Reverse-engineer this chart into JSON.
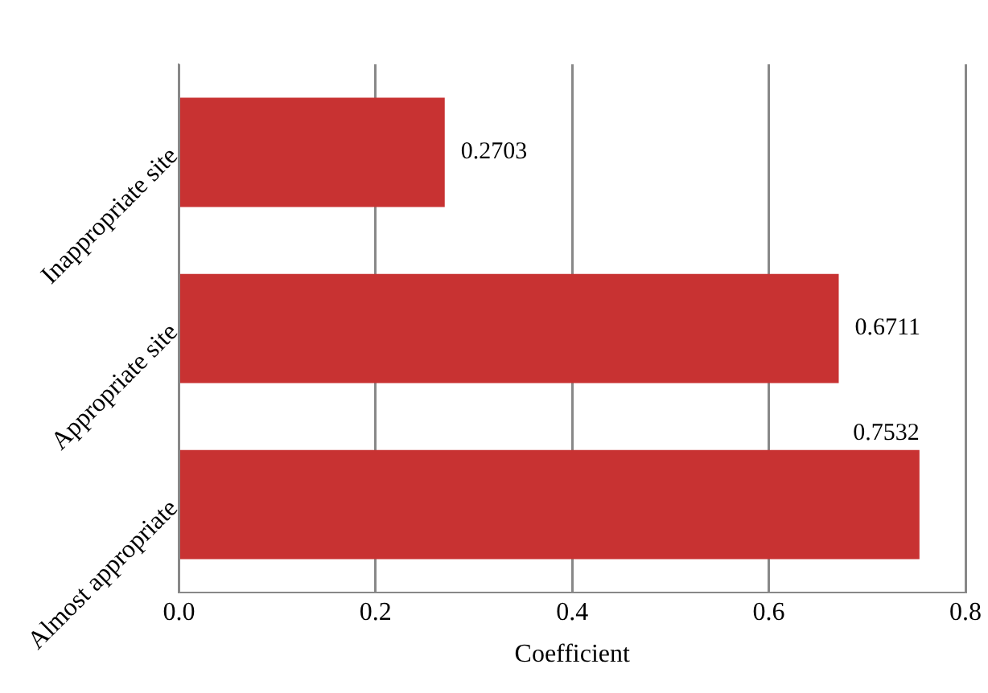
{
  "chart_data": {
    "type": "bar",
    "orientation": "horizontal",
    "xlabel": "Coefficient",
    "categories": [
      "Inappropriate site",
      "Appropriate site",
      "Almost appropriate"
    ],
    "values": [
      0.2703,
      0.6711,
      0.7532
    ],
    "color": "#c83232",
    "xlim": [
      0,
      0.8
    ],
    "xticks": [
      {
        "value": 0,
        "label": "0.0"
      },
      {
        "value": 0.2,
        "label": "0.2"
      },
      {
        "value": 0.4,
        "label": "0.4"
      },
      {
        "value": 0.6,
        "label": "0.6"
      },
      {
        "value": 0.8,
        "label": "0.8"
      }
    ],
    "grid": "x",
    "data_labels": true,
    "legend": false
  }
}
